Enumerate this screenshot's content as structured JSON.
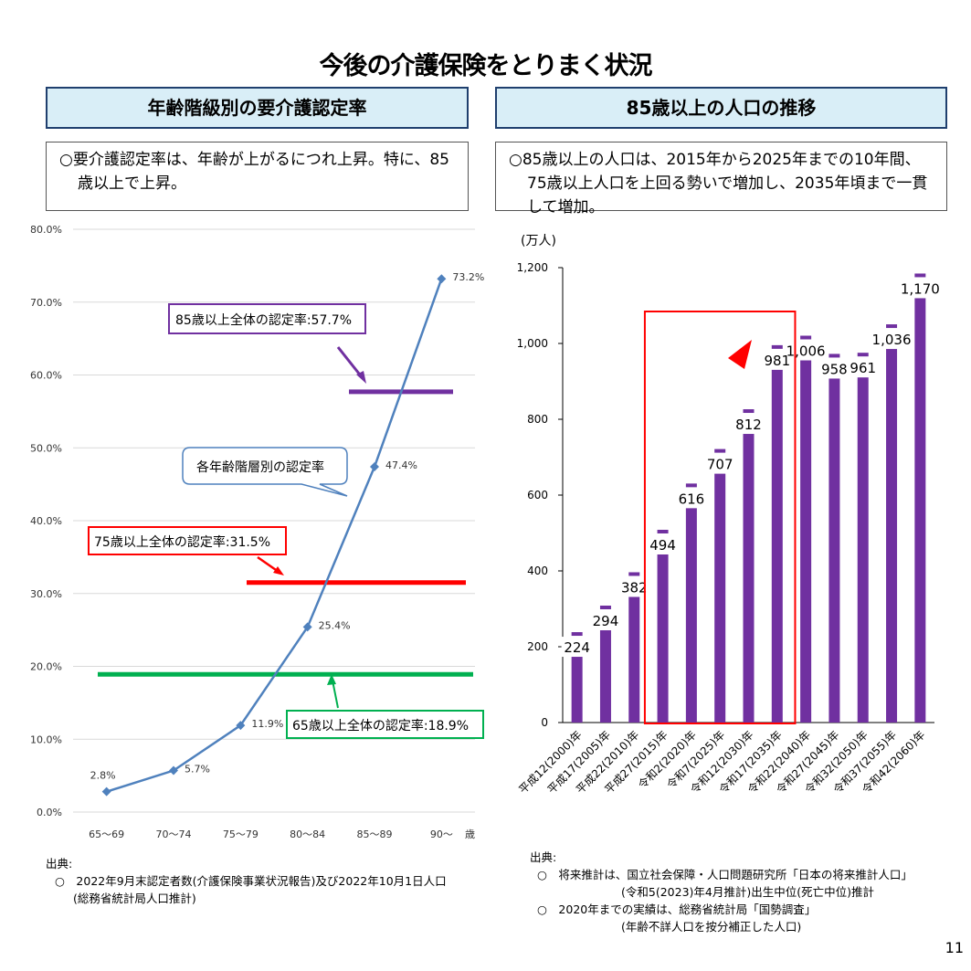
{
  "page_title": "今後の介護保険をとりまく状況",
  "page_number": "11",
  "left": {
    "header": "年齢階級別の要介護認定率",
    "description": "○要介護認定率は、年齢が上がるにつれ上昇。特に、85歳以上で上昇。",
    "x_axis_unit": "歳",
    "callouts": {
      "over85": "85歳以上全体の認定率:57.7%",
      "age_group": "各年齢階層別の認定率",
      "over75": "75歳以上全体の認定率:31.5%",
      "over65": "65歳以上全体の認定率:18.9%"
    },
    "source_heading": "出典:",
    "source_lines": [
      "○　2022年9月末認定者数(介護保険事業状況報告)及び2022年10月1日人口",
      "(総務省統計局人口推計)"
    ]
  },
  "right": {
    "header": "85歳以上の人口の推移",
    "description": "○85歳以上の人口は、2015年から2025年までの10年間、75歳以上人口を上回る勢いで増加し、2035年頃まで一貫して増加。",
    "y_unit": "(万人)",
    "source_heading": "出典:",
    "source_lines": [
      "○　将来推計は、国立社会保障・人口問題研究所「日本の将来推計人口」",
      "(令和5(2023)年4月推計)出生中位(死亡中位)推計",
      "○　2020年までの実績は、総務省統計局「国勢調査」",
      "(年齢不詳人口を按分補正した人口)"
    ]
  },
  "chart_data": [
    {
      "type": "line",
      "categories": [
        "65〜69",
        "70〜74",
        "75〜79",
        "80〜84",
        "85〜89",
        "90〜"
      ],
      "series": [
        {
          "values": [
            2.8,
            5.7,
            11.9,
            25.4,
            47.4,
            73.2
          ],
          "labels": [
            "2.8%",
            "5.7%",
            "11.9%",
            "25.4%",
            "47.4%",
            "73.2%"
          ],
          "color": "#4f81bd"
        }
      ],
      "reference_lines": [
        {
          "value": 57.7,
          "color": "#7030a0"
        },
        {
          "value": 31.5,
          "color": "#ff0000"
        },
        {
          "value": 18.9,
          "color": "#00b050"
        }
      ],
      "yticks": [
        "0.0%",
        "10.0%",
        "20.0%",
        "30.0%",
        "40.0%",
        "50.0%",
        "60.0%",
        "70.0%",
        "80.0%"
      ],
      "ylim": [
        0,
        80
      ],
      "grid": true
    },
    {
      "type": "bar",
      "categories": [
        "平成12(2000)年",
        "平成17(2005)年",
        "平成22(2010)年",
        "平成27(2015)年",
        "令和2(2020)年",
        "令和7(2025)年",
        "令和12(2030)年",
        "令和17(2035)年",
        "令和22(2040)年",
        "令和27(2045)年",
        "令和32(2050)年",
        "令和37(2055)年",
        "令和42(2060)年"
      ],
      "values": [
        224,
        294,
        382,
        494,
        616,
        707,
        812,
        981,
        1006,
        958,
        961,
        1036,
        1170
      ],
      "labels": [
        "224",
        "294",
        "382",
        "494",
        "616",
        "707",
        "812",
        "981",
        "1,006",
        "958",
        "961",
        "1,036",
        "1,170"
      ],
      "yticks": [
        "0",
        "200",
        "400",
        "600",
        "800",
        "1,000",
        "1,200"
      ],
      "ylim": [
        0,
        1200
      ],
      "color": "#7030a0",
      "highlight_range": [
        "平成27(2015)年",
        "令和17(2035)年"
      ],
      "highlight_color": "#ff0000"
    }
  ]
}
